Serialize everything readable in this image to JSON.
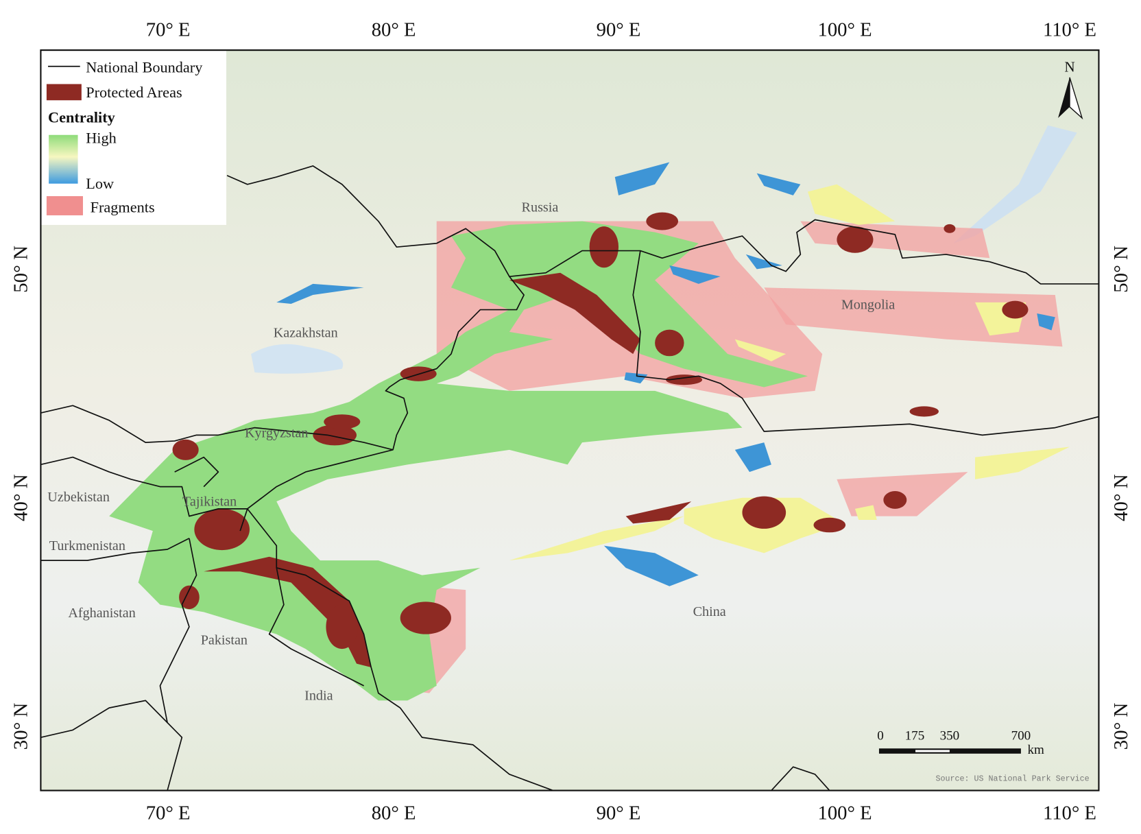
{
  "lon_labels": [
    "70° E",
    "80° E",
    "90° E",
    "100° E",
    "110° E"
  ],
  "lat_labels": [
    "50° N",
    "40° N",
    "30° N"
  ],
  "legend": {
    "boundary": "National Boundary",
    "protected": "Protected Areas",
    "centrality": {
      "title": "Centrality",
      "high": "High",
      "low": "Low"
    },
    "fragments": "Fragments"
  },
  "countries": [
    "Russia",
    "Kazakhstan",
    "Mongolia",
    "Kyrgyzstan",
    "Uzbekistan",
    "Tajikistan",
    "Turkmenistan",
    "Afghanistan",
    "Pakistan",
    "India",
    "China"
  ],
  "scale_bar": {
    "ticks": [
      "0",
      "175",
      "350",
      "700"
    ],
    "unit": "km"
  },
  "north": "N",
  "source": "Source: US National Park Service"
}
